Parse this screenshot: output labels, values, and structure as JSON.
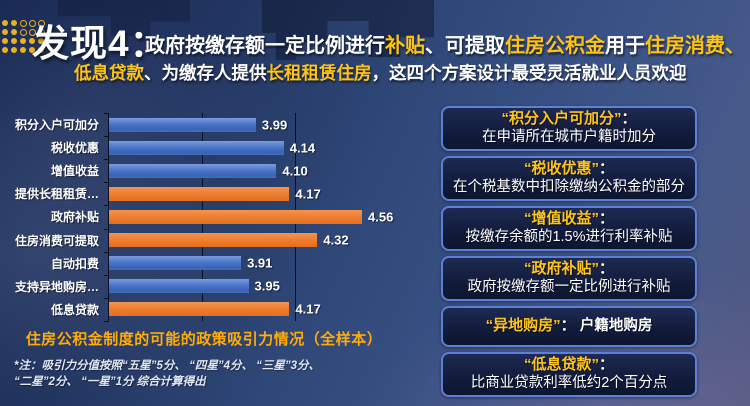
{
  "header": {
    "finding_label": "发现4：",
    "line1_segments": [
      {
        "text": "政府按缴存额一定比例进行",
        "color": "white"
      },
      {
        "text": "补贴",
        "color": "gold"
      },
      {
        "text": "、可提取",
        "color": "white"
      },
      {
        "text": "住房公积金",
        "color": "gold"
      },
      {
        "text": "用于",
        "color": "white"
      },
      {
        "text": "住房消费",
        "color": "gold"
      },
      {
        "text": "、",
        "color": "gold"
      }
    ],
    "line2_segments": [
      {
        "text": "低息贷款",
        "color": "gold"
      },
      {
        "text": "、为缴存人提供",
        "color": "white"
      },
      {
        "text": "长租租赁住房",
        "color": "gold"
      },
      {
        "text": "，这四个方案设计最受灵活就业人员欢迎",
        "color": "white"
      }
    ]
  },
  "chart_data": {
    "type": "bar",
    "orientation": "horizontal",
    "title": "住房公积金制度的可能的政策吸引力情况（全样本）",
    "categories": [
      "积分入户可加分",
      "税收优惠",
      "增值收益",
      "提供长租租赁…",
      "政府补贴",
      "住房消费可提取",
      "自动扣费",
      "支持异地购房…",
      "低息贷款"
    ],
    "values": [
      3.99,
      4.14,
      4.1,
      4.17,
      4.56,
      4.32,
      3.91,
      3.95,
      4.17
    ],
    "bar_colors": [
      "blue",
      "blue",
      "blue",
      "orange",
      "orange",
      "orange",
      "blue",
      "blue",
      "orange"
    ],
    "xlim": [
      3.2,
      4.7
    ],
    "gridlines_x": [
      3.7,
      4.2
    ],
    "grid": true,
    "legend": false,
    "value_labels": true
  },
  "note": {
    "line1": "*注：吸引力分值按照“五星”5分、 “四星”4分、 “三星”3分、",
    "line2": "“二星”2分、 “一星”1分 综合计算得出"
  },
  "info_boxes": [
    {
      "term": "“积分入户可加分”",
      "desc": "在申请所在城市户籍时加分",
      "inline": false
    },
    {
      "term": "“税收优惠”",
      "desc": "在个税基数中扣除缴纳公积金的部分",
      "inline": false
    },
    {
      "term": "“增值收益”",
      "desc": "按缴存余额的1.5%进行利率补贴",
      "inline": false
    },
    {
      "term": "“政府补贴”",
      "desc": "政府按缴存额一定比例进行补贴",
      "inline": false
    },
    {
      "term": "“异地购房”",
      "desc": "户籍地购房",
      "inline": true
    },
    {
      "term": "“低息贷款”",
      "desc": "比商业贷款利率低约2个百分点",
      "inline": false
    }
  ],
  "colors": {
    "gold_text": "#fdc318",
    "bar_blue": "#4472c4",
    "bar_orange": "#ed7d31",
    "box_border": "#5d80d6",
    "caption_orange": "#ffab08",
    "background_navy": "#2f4878"
  }
}
